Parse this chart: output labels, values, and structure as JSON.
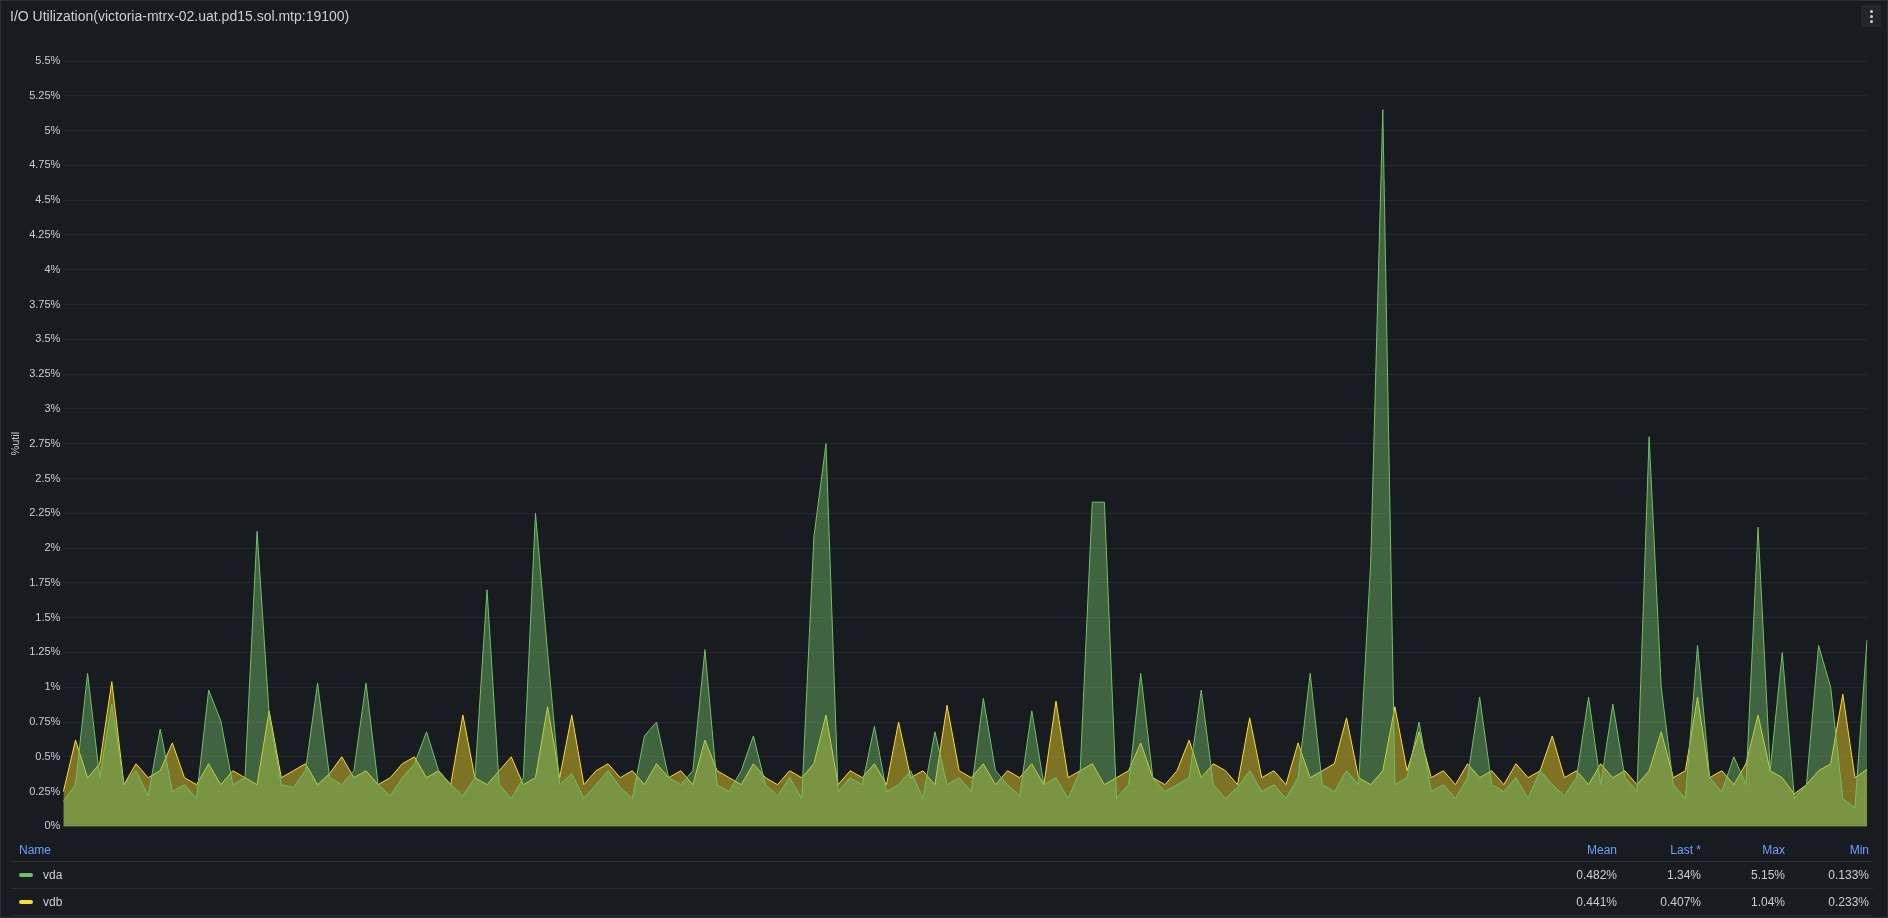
{
  "chart_data": {
    "type": "area",
    "title": "I/O Utilization(victoria-mtrx-02.uat.pd15.sol.mtp:19100)",
    "ylabel": "%util",
    "categories": [
      null,
      null,
      null,
      null,
      null,
      null,
      null,
      null,
      null,
      null,
      null,
      null,
      null,
      null,
      null,
      null,
      null,
      null,
      null,
      null,
      null,
      null,
      null,
      null,
      null,
      null,
      null,
      null,
      null,
      null,
      null,
      null,
      null,
      null,
      null,
      null,
      null,
      null,
      null,
      null,
      null,
      null,
      null,
      null,
      null,
      null,
      null,
      null,
      null,
      null,
      null,
      null,
      null,
      null,
      null,
      null,
      null,
      null,
      null,
      null,
      null,
      null,
      null,
      null,
      null,
      null,
      null,
      null,
      null,
      null,
      null,
      null,
      null,
      null,
      null,
      null,
      null,
      null,
      null,
      null,
      null,
      null,
      null,
      null,
      null,
      null,
      null,
      null,
      null,
      null,
      null,
      null,
      null,
      null,
      null,
      null,
      null,
      null,
      null,
      null,
      null,
      null,
      null,
      null,
      null,
      null,
      null,
      null,
      null,
      null,
      null,
      null,
      null,
      null,
      null,
      null,
      null,
      null,
      null,
      null,
      null,
      null,
      null,
      null,
      null,
      null,
      null,
      null,
      null,
      null,
      null,
      null,
      null,
      null,
      null,
      null,
      null,
      null,
      null,
      null,
      null,
      null,
      null,
      null,
      null,
      null,
      null,
      null,
      null,
      null
    ],
    "series": [
      {
        "name": "vda",
        "color": "#73bf69",
        "values": [
          0.18,
          0.3,
          1.1,
          0.35,
          0.88,
          0.3,
          0.4,
          0.22,
          0.7,
          0.25,
          0.3,
          0.2,
          0.98,
          0.76,
          0.3,
          0.35,
          2.12,
          0.8,
          0.3,
          0.28,
          0.4,
          1.03,
          0.35,
          0.3,
          0.4,
          1.03,
          0.3,
          0.22,
          0.35,
          0.45,
          0.68,
          0.4,
          0.3,
          0.22,
          0.35,
          1.7,
          0.3,
          0.2,
          0.35,
          2.25,
          1.25,
          0.3,
          0.38,
          0.2,
          0.3,
          0.4,
          0.28,
          0.2,
          0.65,
          0.75,
          0.35,
          0.3,
          0.4,
          1.27,
          0.3,
          0.25,
          0.4,
          0.65,
          0.3,
          0.22,
          0.35,
          0.2,
          2.08,
          2.75,
          0.25,
          0.35,
          0.3,
          0.72,
          0.25,
          0.3,
          0.4,
          0.2,
          0.68,
          0.3,
          0.35,
          0.25,
          0.92,
          0.4,
          0.3,
          0.22,
          0.83,
          0.3,
          0.35,
          0.2,
          0.4,
          2.33,
          2.33,
          0.2,
          0.3,
          1.1,
          0.35,
          0.25,
          0.3,
          0.35,
          0.98,
          0.3,
          0.2,
          0.28,
          0.4,
          0.25,
          0.3,
          0.2,
          0.35,
          1.1,
          0.3,
          0.25,
          0.4,
          0.3,
          1.9,
          5.15,
          0.3,
          0.35,
          0.75,
          0.25,
          0.3,
          0.2,
          0.35,
          0.93,
          0.3,
          0.25,
          0.35,
          0.2,
          0.4,
          0.3,
          0.22,
          0.35,
          0.93,
          0.3,
          0.88,
          0.35,
          0.25,
          2.8,
          1.0,
          0.3,
          0.2,
          1.3,
          0.35,
          0.25,
          0.5,
          0.3,
          2.15,
          0.4,
          1.25,
          0.2,
          0.3,
          1.3,
          1.0,
          0.2,
          0.133,
          1.34
        ]
      },
      {
        "name": "vdb",
        "color": "#fade2a",
        "values": [
          0.25,
          0.62,
          0.35,
          0.45,
          1.04,
          0.3,
          0.45,
          0.35,
          0.4,
          0.6,
          0.35,
          0.3,
          0.45,
          0.3,
          0.4,
          0.35,
          0.3,
          0.83,
          0.35,
          0.4,
          0.45,
          0.3,
          0.38,
          0.5,
          0.35,
          0.4,
          0.3,
          0.35,
          0.45,
          0.5,
          0.35,
          0.4,
          0.3,
          0.8,
          0.35,
          0.3,
          0.4,
          0.5,
          0.3,
          0.35,
          0.86,
          0.35,
          0.8,
          0.3,
          0.4,
          0.45,
          0.35,
          0.4,
          0.3,
          0.45,
          0.35,
          0.4,
          0.3,
          0.62,
          0.4,
          0.35,
          0.3,
          0.45,
          0.35,
          0.3,
          0.4,
          0.35,
          0.45,
          0.8,
          0.3,
          0.4,
          0.35,
          0.45,
          0.3,
          0.75,
          0.35,
          0.4,
          0.3,
          0.87,
          0.4,
          0.35,
          0.45,
          0.3,
          0.4,
          0.35,
          0.45,
          0.3,
          0.9,
          0.35,
          0.4,
          0.45,
          0.3,
          0.35,
          0.4,
          0.6,
          0.35,
          0.3,
          0.4,
          0.62,
          0.35,
          0.45,
          0.4,
          0.3,
          0.78,
          0.35,
          0.4,
          0.3,
          0.6,
          0.35,
          0.4,
          0.45,
          0.78,
          0.35,
          0.3,
          0.4,
          0.86,
          0.4,
          0.68,
          0.35,
          0.4,
          0.3,
          0.45,
          0.35,
          0.4,
          0.3,
          0.45,
          0.35,
          0.4,
          0.65,
          0.35,
          0.4,
          0.3,
          0.45,
          0.35,
          0.4,
          0.3,
          0.4,
          0.68,
          0.35,
          0.4,
          0.93,
          0.35,
          0.4,
          0.3,
          0.45,
          0.8,
          0.4,
          0.35,
          0.233,
          0.3,
          0.4,
          0.45,
          0.95,
          0.35,
          0.41
        ]
      }
    ],
    "ylim": [
      0,
      5.5
    ],
    "yticks": [
      {
        "value": 0,
        "label": "0%"
      },
      {
        "value": 0.25,
        "label": "0.25%"
      },
      {
        "value": 0.5,
        "label": "0.5%"
      },
      {
        "value": 0.75,
        "label": "0.75%"
      },
      {
        "value": 1,
        "label": "1%"
      },
      {
        "value": 1.25,
        "label": "1.25%"
      },
      {
        "value": 1.5,
        "label": "1.5%"
      },
      {
        "value": 1.75,
        "label": "1.75%"
      },
      {
        "value": 2,
        "label": "2%"
      },
      {
        "value": 2.25,
        "label": "2.25%"
      },
      {
        "value": 2.5,
        "label": "2.5%"
      },
      {
        "value": 2.75,
        "label": "2.75%"
      },
      {
        "value": 3,
        "label": "3%"
      },
      {
        "value": 3.25,
        "label": "3.25%"
      },
      {
        "value": 3.5,
        "label": "3.5%"
      },
      {
        "value": 3.75,
        "label": "3.75%"
      },
      {
        "value": 4,
        "label": "4%"
      },
      {
        "value": 4.25,
        "label": "4.25%"
      },
      {
        "value": 4.5,
        "label": "4.5%"
      },
      {
        "value": 4.75,
        "label": "4.75%"
      },
      {
        "value": 5,
        "label": "5%"
      },
      {
        "value": 5.25,
        "label": "5.25%"
      },
      {
        "value": 5.5,
        "label": "5.5%"
      }
    ],
    "grid": "y",
    "legend": "bottom",
    "marker": "none",
    "line_style": "solid",
    "annotations": [
      "Name",
      "Mean",
      "Last *",
      "Max",
      "Min",
      "0.482%",
      "1.34%",
      "5.15%",
      "0.133%",
      "0.441%",
      "0.407%",
      "1.04%",
      "0.233%"
    ]
  }
}
